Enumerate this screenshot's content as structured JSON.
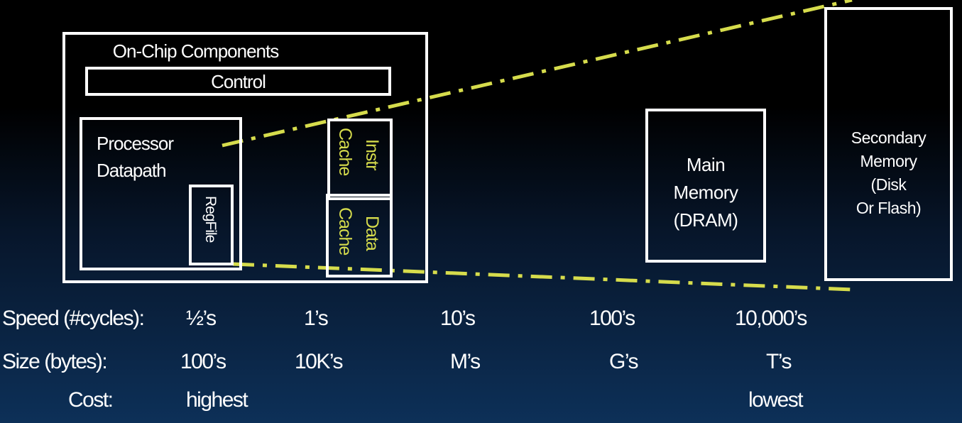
{
  "on_chip": {
    "title": "On-Chip Components",
    "control": "Control",
    "processor": [
      "Processor",
      "Datapath"
    ],
    "regfile": "RegFile",
    "instr_cache": [
      "Instr",
      "Cache"
    ],
    "data_cache": [
      "Data",
      "Cache"
    ]
  },
  "main_memory": [
    "Main",
    "Memory",
    "(DRAM)"
  ],
  "secondary_memory": [
    "Secondary",
    "Memory",
    "(Disk",
    "Or Flash)"
  ],
  "speed": {
    "label": "Speed (#cycles):",
    "values": [
      "½’s",
      "1’s",
      "10’s",
      "100’s",
      "10,000’s"
    ]
  },
  "size": {
    "label": "Size (bytes):",
    "values": [
      "100’s",
      "10K’s",
      "M’s",
      "G’s",
      "T’s"
    ]
  },
  "cost": {
    "label": "Cost:",
    "values": [
      "highest",
      "lowest"
    ]
  },
  "colors": {
    "accent_yellow": "#d6dc4c",
    "box_white": "#ffffff"
  }
}
